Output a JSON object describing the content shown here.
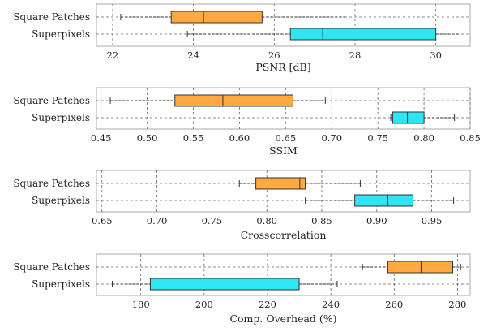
{
  "chart_data": [
    {
      "type": "box",
      "xlabel": "PSNR [dB]",
      "xlim": [
        21.6,
        30.85
      ],
      "xticks": [
        22,
        24,
        26,
        28,
        30
      ],
      "tick_format": "int",
      "grid": true,
      "categories": [
        "Square Patches",
        "Superpixels"
      ],
      "boxes": [
        {
          "name": "Square Patches",
          "min": 22.2,
          "q1": 23.45,
          "median": 24.25,
          "q3": 25.7,
          "max": 27.75,
          "color": "#ffa940"
        },
        {
          "name": "Superpixels",
          "min": 23.85,
          "q1": 26.4,
          "median": 27.2,
          "q3": 30.0,
          "max": 30.6,
          "color": "#2ee6f2"
        }
      ]
    },
    {
      "type": "box",
      "xlabel": "SSIM",
      "xlim": [
        0.445,
        0.85
      ],
      "xticks": [
        0.45,
        0.5,
        0.55,
        0.6,
        0.65,
        0.7,
        0.75,
        0.8,
        0.85
      ],
      "tick_format": "2dp",
      "grid": true,
      "categories": [
        "Square Patches",
        "Superpixels"
      ],
      "boxes": [
        {
          "name": "Square Patches",
          "min": 0.46,
          "q1": 0.53,
          "median": 0.582,
          "q3": 0.658,
          "max": 0.693,
          "color": "#ffa940"
        },
        {
          "name": "Superpixels",
          "min": 0.764,
          "q1": 0.766,
          "median": 0.782,
          "q3": 0.8,
          "max": 0.833,
          "color": "#2ee6f2"
        }
      ]
    },
    {
      "type": "box",
      "xlabel": "Crosscorrelation",
      "xlim": [
        0.645,
        0.985
      ],
      "xticks": [
        0.65,
        0.7,
        0.75,
        0.8,
        0.85,
        0.9,
        0.95
      ],
      "tick_format": "2dp",
      "grid": true,
      "categories": [
        "Square Patches",
        "Superpixels"
      ],
      "boxes": [
        {
          "name": "Square Patches",
          "min": 0.775,
          "q1": 0.79,
          "median": 0.83,
          "q3": 0.835,
          "max": 0.885,
          "color": "#ffa940"
        },
        {
          "name": "Superpixels",
          "min": 0.835,
          "q1": 0.88,
          "median": 0.91,
          "q3": 0.933,
          "max": 0.97,
          "color": "#2ee6f2"
        }
      ]
    },
    {
      "type": "box",
      "xlabel": "Comp. Overhead (%)",
      "xlim": [
        166.0,
        284.0
      ],
      "xticks": [
        180,
        200,
        220,
        240,
        260,
        280
      ],
      "tick_format": "int",
      "grid": true,
      "categories": [
        "Square Patches",
        "Superpixels"
      ],
      "boxes": [
        {
          "name": "Square Patches",
          "min": 250.0,
          "q1": 258.0,
          "median": 268.5,
          "q3": 278.5,
          "max": 281.0,
          "color": "#ffa940"
        },
        {
          "name": "Superpixels",
          "min": 171.0,
          "q1": 183.0,
          "median": 214.5,
          "q3": 230.0,
          "max": 242.0,
          "color": "#2ee6f2"
        }
      ]
    }
  ]
}
